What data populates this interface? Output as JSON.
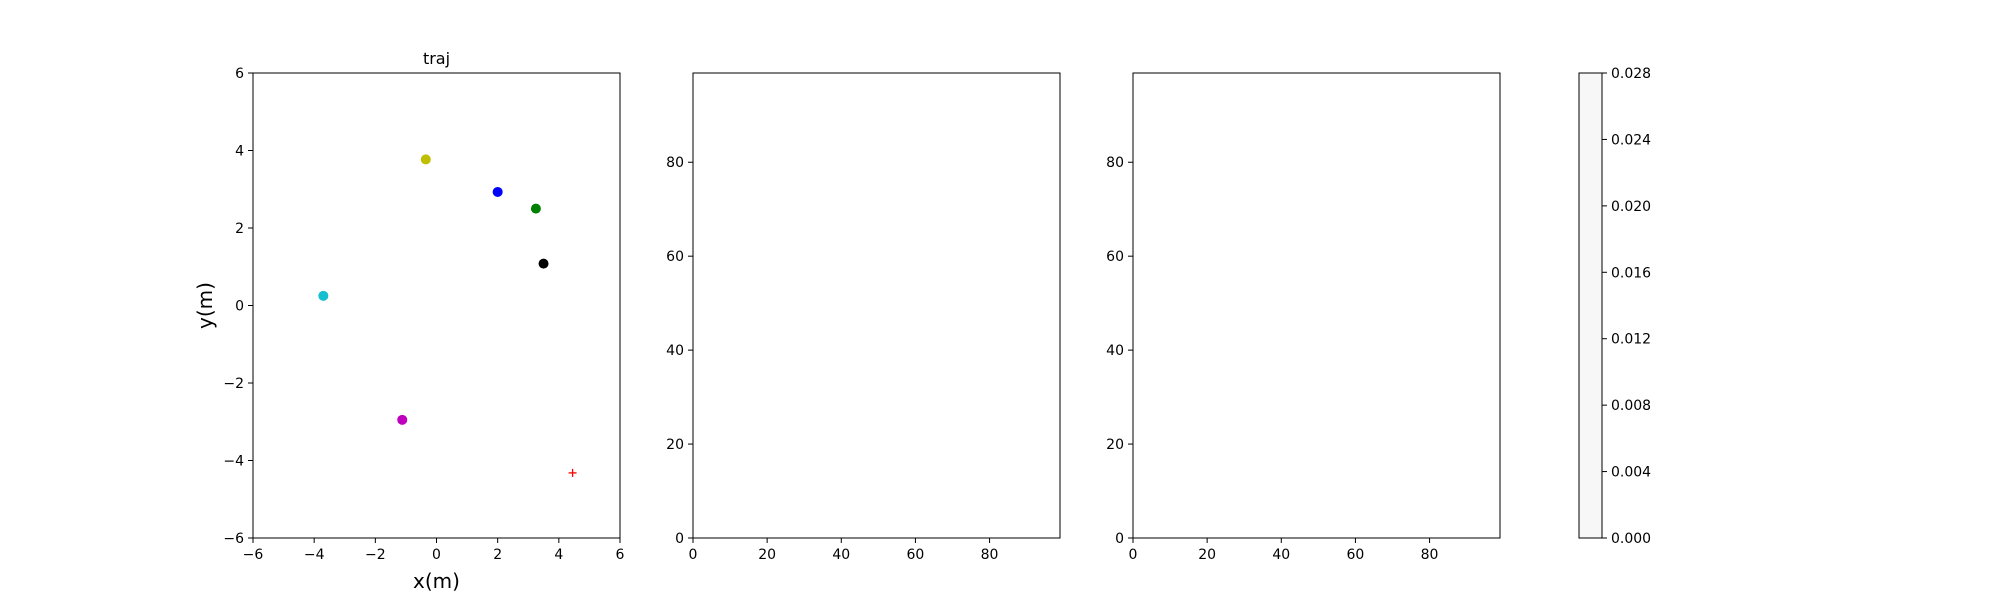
{
  "chart_data": [
    {
      "type": "scatter",
      "title": "traj",
      "xlabel": "x(m)",
      "ylabel": "y(m)",
      "xlim": [
        -6,
        6
      ],
      "ylim": [
        -6,
        6
      ],
      "xticks": [
        -6,
        -4,
        -2,
        0,
        2,
        4,
        6
      ],
      "yticks": [
        -6,
        -4,
        -2,
        0,
        2,
        4,
        6
      ],
      "grid": false,
      "points": [
        {
          "x": -0.35,
          "y": 3.77,
          "color": "#bfbf00",
          "marker": "circle"
        },
        {
          "x": 2.0,
          "y": 2.93,
          "color": "#0000ff",
          "marker": "circle"
        },
        {
          "x": 3.25,
          "y": 2.5,
          "color": "#008000",
          "marker": "circle"
        },
        {
          "x": 3.5,
          "y": 1.08,
          "color": "#000000",
          "marker": "circle"
        },
        {
          "x": -3.7,
          "y": 0.25,
          "color": "#17becf",
          "marker": "circle"
        },
        {
          "x": -1.12,
          "y": -2.95,
          "color": "#bf00bf",
          "marker": "circle"
        },
        {
          "x": 4.45,
          "y": -4.32,
          "color": "#ff0000",
          "marker": "plus"
        }
      ]
    },
    {
      "type": "heatmap",
      "title": "",
      "xlabel": "",
      "ylabel": "",
      "xlim": [
        0,
        99
      ],
      "ylim": [
        0,
        99
      ],
      "xticks": [
        0,
        20,
        40,
        60,
        80
      ],
      "yticks": [
        0,
        20,
        40,
        60,
        80
      ],
      "values": []
    },
    {
      "type": "heatmap",
      "title": "",
      "xlabel": "",
      "ylabel": "",
      "xlim": [
        0,
        99
      ],
      "ylim": [
        0,
        99
      ],
      "xticks": [
        0,
        20,
        40,
        60,
        80
      ],
      "yticks": [
        0,
        20,
        40,
        60,
        80
      ],
      "values": []
    },
    {
      "type": "colorbar",
      "range": [
        0,
        0.028
      ],
      "ticks": [
        "0.000",
        "0.004",
        "0.008",
        "0.012",
        "0.016",
        "0.020",
        "0.024",
        "0.028"
      ],
      "color": "#f7f7f7"
    }
  ]
}
